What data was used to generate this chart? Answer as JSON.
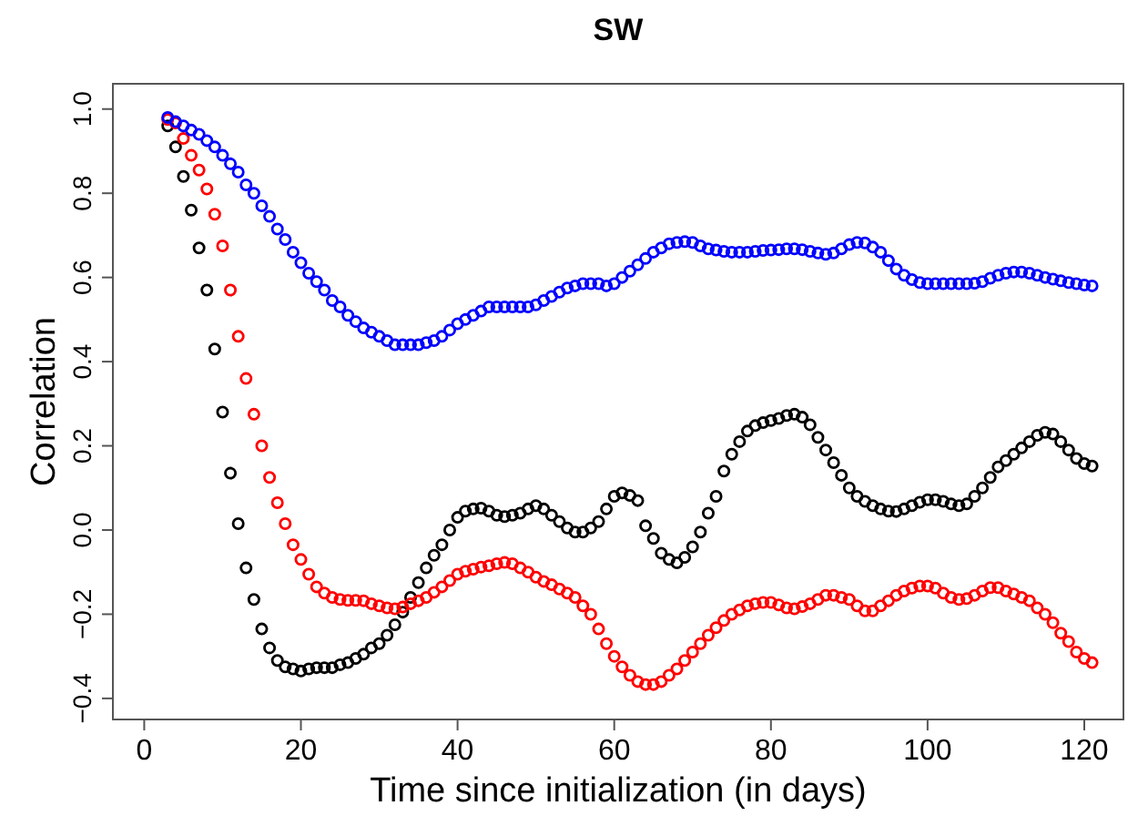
{
  "chart_data": {
    "type": "scatter",
    "title": "SW",
    "xlabel": "Time since initialization (in days)",
    "ylabel": "Correlation",
    "x": [
      3,
      4,
      5,
      6,
      7,
      8,
      9,
      10,
      11,
      12,
      13,
      14,
      15,
      16,
      17,
      18,
      19,
      20,
      21,
      22,
      23,
      24,
      25,
      26,
      27,
      28,
      29,
      30,
      31,
      32,
      33,
      34,
      35,
      36,
      37,
      38,
      39,
      40,
      41,
      42,
      43,
      44,
      45,
      46,
      47,
      48,
      49,
      50,
      51,
      52,
      53,
      54,
      55,
      56,
      57,
      58,
      59,
      60,
      61,
      62,
      63,
      64,
      65,
      66,
      67,
      68,
      69,
      70,
      71,
      72,
      73,
      74,
      75,
      76,
      77,
      78,
      79,
      80,
      81,
      82,
      83,
      84,
      85,
      86,
      87,
      88,
      89,
      90,
      91,
      92,
      93,
      94,
      95,
      96,
      97,
      98,
      99,
      100,
      101,
      102,
      103,
      104,
      105,
      106,
      107,
      108,
      109,
      110,
      111,
      112,
      113,
      114,
      115,
      116,
      117,
      118,
      119,
      120,
      121
    ],
    "series": [
      {
        "color": "#000000",
        "values": [
          0.96,
          0.91,
          0.84,
          0.76,
          0.67,
          0.57,
          0.43,
          0.28,
          0.135,
          0.015,
          -0.09,
          -0.165,
          -0.235,
          -0.28,
          -0.31,
          -0.325,
          -0.33,
          -0.335,
          -0.33,
          -0.327,
          -0.327,
          -0.327,
          -0.32,
          -0.315,
          -0.305,
          -0.295,
          -0.28,
          -0.27,
          -0.25,
          -0.225,
          -0.195,
          -0.16,
          -0.125,
          -0.09,
          -0.06,
          -0.035,
          0,
          0.03,
          0.045,
          0.05,
          0.052,
          0.045,
          0.035,
          0.032,
          0.035,
          0.04,
          0.05,
          0.058,
          0.05,
          0.035,
          0.02,
          0.005,
          -0.005,
          -0.005,
          0.005,
          0.02,
          0.05,
          0.08,
          0.088,
          0.082,
          0.07,
          0.01,
          -0.02,
          -0.055,
          -0.07,
          -0.078,
          -0.065,
          -0.04,
          -0.005,
          0.04,
          0.08,
          0.14,
          0.18,
          0.21,
          0.235,
          0.248,
          0.255,
          0.26,
          0.265,
          0.272,
          0.275,
          0.268,
          0.25,
          0.22,
          0.19,
          0.16,
          0.13,
          0.1,
          0.08,
          0.068,
          0.058,
          0.05,
          0.045,
          0.044,
          0.05,
          0.058,
          0.066,
          0.072,
          0.072,
          0.068,
          0.062,
          0.058,
          0.062,
          0.08,
          0.1,
          0.125,
          0.15,
          0.165,
          0.18,
          0.195,
          0.21,
          0.225,
          0.232,
          0.228,
          0.21,
          0.19,
          0.17,
          0.158,
          0.152
        ]
      },
      {
        "color": "#ff0000",
        "values": [
          0.975,
          0.967,
          0.93,
          0.89,
          0.855,
          0.81,
          0.75,
          0.675,
          0.57,
          0.46,
          0.36,
          0.275,
          0.2,
          0.125,
          0.065,
          0.015,
          -0.035,
          -0.07,
          -0.105,
          -0.135,
          -0.15,
          -0.16,
          -0.165,
          -0.167,
          -0.167,
          -0.168,
          -0.175,
          -0.18,
          -0.185,
          -0.187,
          -0.183,
          -0.175,
          -0.168,
          -0.16,
          -0.148,
          -0.135,
          -0.12,
          -0.105,
          -0.098,
          -0.093,
          -0.088,
          -0.085,
          -0.08,
          -0.077,
          -0.08,
          -0.09,
          -0.1,
          -0.112,
          -0.122,
          -0.13,
          -0.14,
          -0.15,
          -0.16,
          -0.18,
          -0.2,
          -0.235,
          -0.27,
          -0.3,
          -0.325,
          -0.345,
          -0.36,
          -0.367,
          -0.367,
          -0.36,
          -0.345,
          -0.33,
          -0.31,
          -0.29,
          -0.27,
          -0.25,
          -0.232,
          -0.215,
          -0.2,
          -0.19,
          -0.18,
          -0.175,
          -0.172,
          -0.172,
          -0.178,
          -0.185,
          -0.187,
          -0.182,
          -0.175,
          -0.165,
          -0.155,
          -0.155,
          -0.16,
          -0.165,
          -0.18,
          -0.192,
          -0.192,
          -0.18,
          -0.168,
          -0.155,
          -0.145,
          -0.138,
          -0.133,
          -0.133,
          -0.138,
          -0.15,
          -0.16,
          -0.165,
          -0.163,
          -0.155,
          -0.145,
          -0.137,
          -0.137,
          -0.145,
          -0.152,
          -0.16,
          -0.168,
          -0.185,
          -0.2,
          -0.22,
          -0.245,
          -0.265,
          -0.29,
          -0.305,
          -0.315
        ]
      },
      {
        "color": "#0000ff",
        "values": [
          0.98,
          0.97,
          0.96,
          0.95,
          0.94,
          0.925,
          0.91,
          0.89,
          0.87,
          0.85,
          0.82,
          0.8,
          0.77,
          0.745,
          0.715,
          0.69,
          0.66,
          0.635,
          0.61,
          0.59,
          0.57,
          0.545,
          0.53,
          0.51,
          0.495,
          0.48,
          0.47,
          0.46,
          0.45,
          0.44,
          0.44,
          0.44,
          0.44,
          0.445,
          0.45,
          0.46,
          0.475,
          0.49,
          0.5,
          0.51,
          0.52,
          0.53,
          0.53,
          0.53,
          0.53,
          0.53,
          0.53,
          0.535,
          0.545,
          0.555,
          0.565,
          0.575,
          0.58,
          0.585,
          0.585,
          0.585,
          0.58,
          0.585,
          0.6,
          0.615,
          0.63,
          0.645,
          0.66,
          0.67,
          0.68,
          0.683,
          0.685,
          0.683,
          0.675,
          0.668,
          0.665,
          0.662,
          0.66,
          0.66,
          0.66,
          0.662,
          0.664,
          0.665,
          0.666,
          0.668,
          0.668,
          0.666,
          0.662,
          0.658,
          0.655,
          0.658,
          0.668,
          0.678,
          0.683,
          0.682,
          0.672,
          0.66,
          0.64,
          0.62,
          0.605,
          0.595,
          0.588,
          0.585,
          0.585,
          0.585,
          0.585,
          0.585,
          0.585,
          0.586,
          0.59,
          0.598,
          0.605,
          0.61,
          0.613,
          0.613,
          0.61,
          0.605,
          0.6,
          0.596,
          0.592,
          0.588,
          0.585,
          0.582,
          0.58
        ]
      }
    ],
    "marker": "circle",
    "xlim": [
      -4,
      125
    ],
    "ylim": [
      -0.45,
      1.06
    ],
    "xticks": [
      0,
      20,
      40,
      60,
      80,
      100,
      120
    ],
    "yticks": [
      {
        "value": -0.4,
        "label": "−0.4"
      },
      {
        "value": -0.2,
        "label": "−0.2"
      },
      {
        "value": 0,
        "label": "0.0"
      },
      0.2,
      0.4,
      0.6,
      0.8,
      {
        "value": 1,
        "label": "1.0"
      }
    ]
  }
}
